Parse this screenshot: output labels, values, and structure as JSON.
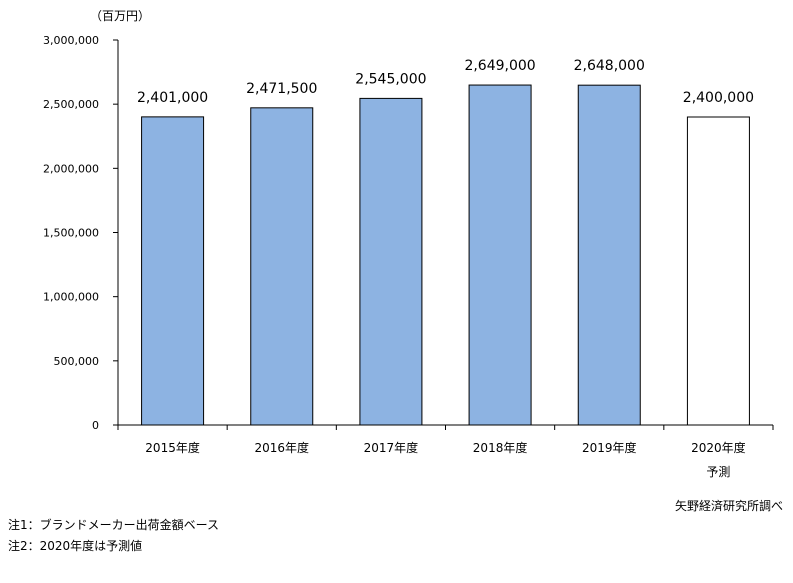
{
  "chart_data": {
    "type": "bar",
    "unit_label": "（百万円）",
    "categories": [
      "2015年度",
      "2016年度",
      "2017年度",
      "2018年度",
      "2019年度",
      "2020年度"
    ],
    "category_sublabels": [
      "",
      "",
      "",
      "",
      "",
      "予測"
    ],
    "values": [
      2401000,
      2471500,
      2545000,
      2649000,
      2648000,
      2400000
    ],
    "data_labels": [
      "2,401,000",
      "2,471,500",
      "2,545,000",
      "2,649,000",
      "2,648,000",
      "2,400,000"
    ],
    "forecast": [
      false,
      false,
      false,
      false,
      false,
      true
    ],
    "ylim": [
      0,
      3000000
    ],
    "yticks": [
      0,
      500000,
      1000000,
      1500000,
      2000000,
      2500000,
      3000000
    ],
    "ytick_labels": [
      "0",
      "500,000",
      "1,000,000",
      "1,500,000",
      "2,000,000",
      "2,500,000",
      "3,000,000"
    ],
    "colors": {
      "bar": "#8db3e2",
      "forecast_bar": "#ffffff",
      "outline": "#000000"
    },
    "grid": false
  },
  "notes": [
    "注1：ブランドメーカー出荷金額ベース",
    "注2：2020年度は予測値"
  ],
  "source": "矢野経済研究所調べ"
}
